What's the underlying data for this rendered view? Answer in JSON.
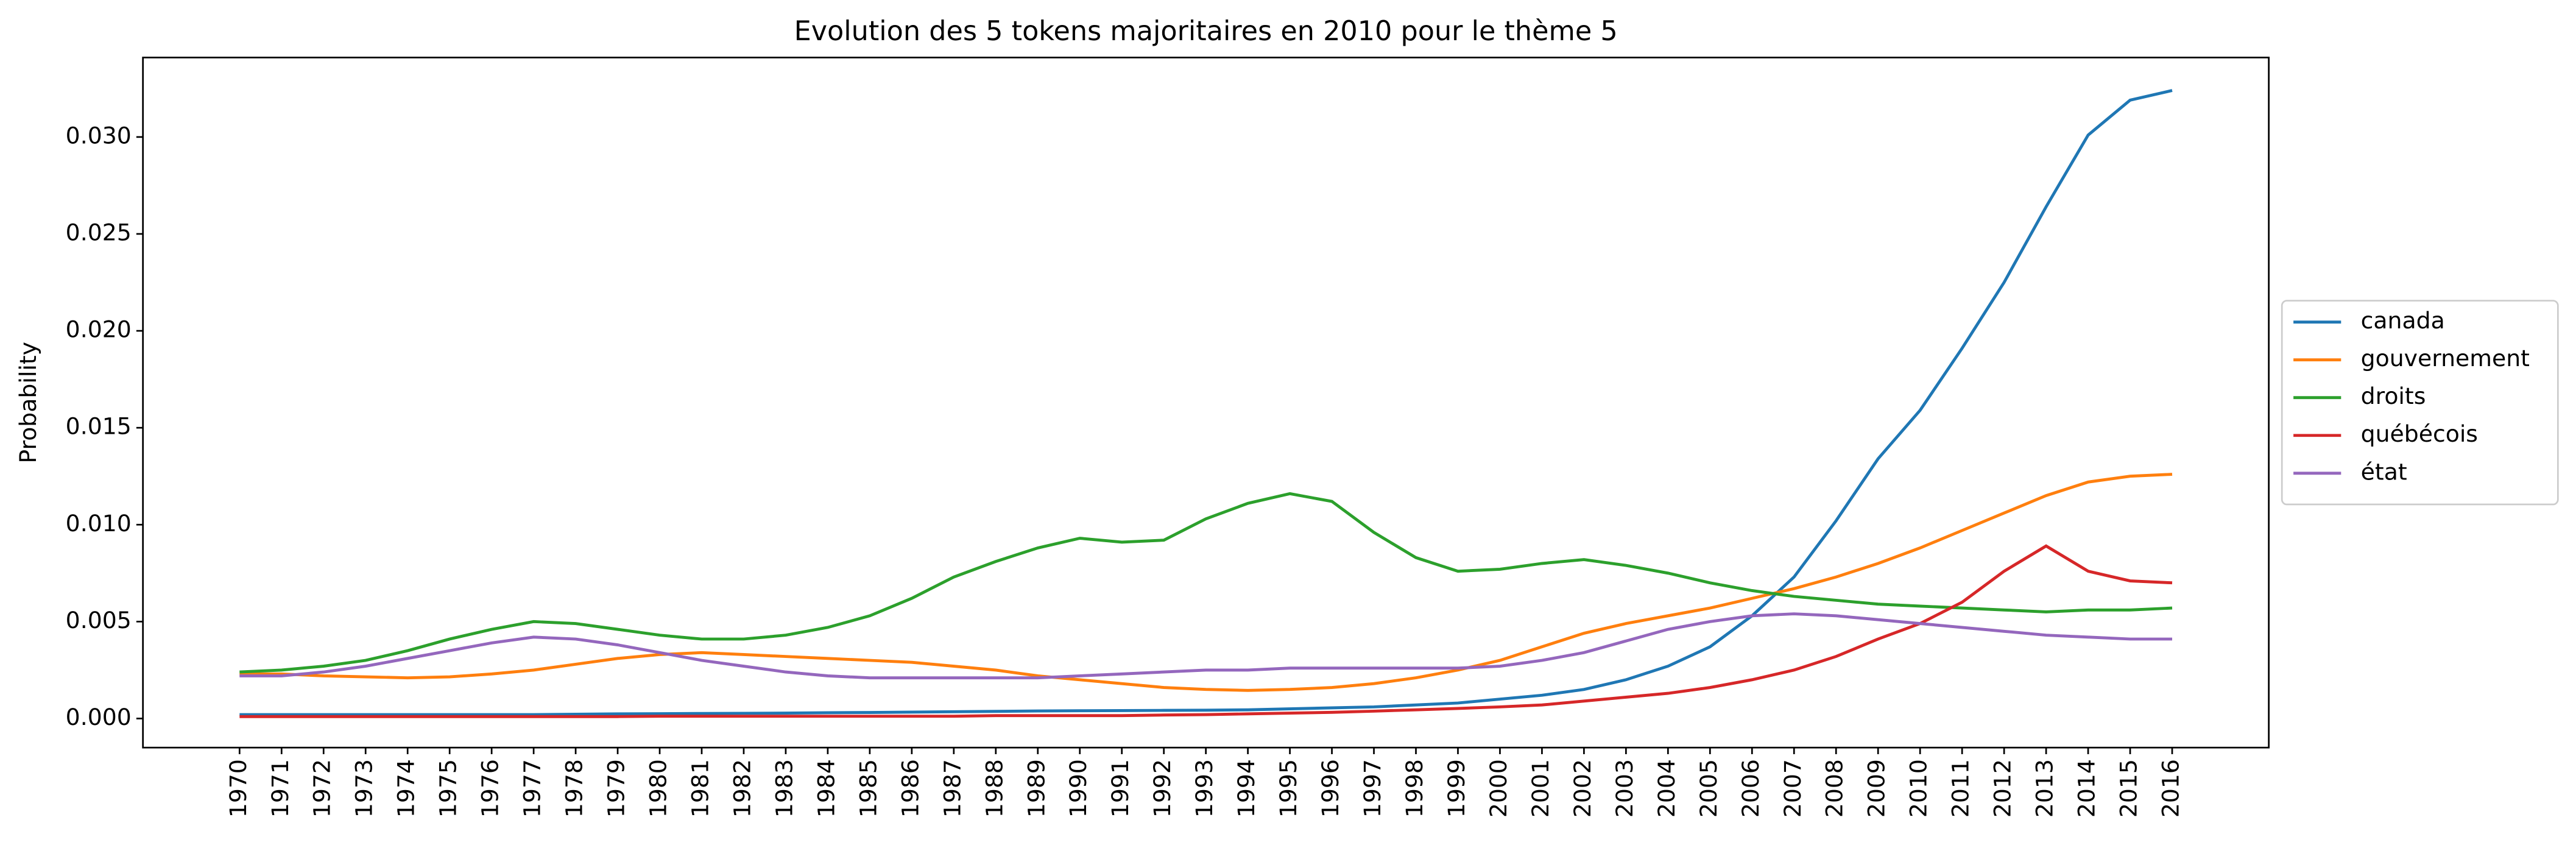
{
  "chart_data": {
    "type": "line",
    "title": "Evolution des 5 tokens majoritaires en 2010 pour le thème 5",
    "y_label": "Probability",
    "x": [
      1970,
      1971,
      1972,
      1973,
      1974,
      1975,
      1976,
      1977,
      1978,
      1979,
      1980,
      1981,
      1982,
      1983,
      1984,
      1985,
      1986,
      1987,
      1988,
      1989,
      1990,
      1991,
      1992,
      1993,
      1994,
      1995,
      1996,
      1997,
      1998,
      1999,
      2000,
      2001,
      2002,
      2003,
      2004,
      2005,
      2006,
      2007,
      2008,
      2009,
      2010,
      2011,
      2012,
      2013,
      2014,
      2015,
      2016
    ],
    "xticks": [
      1970,
      1971,
      1972,
      1973,
      1974,
      1975,
      1976,
      1977,
      1978,
      1979,
      1980,
      1981,
      1982,
      1983,
      1984,
      1985,
      1986,
      1987,
      1988,
      1989,
      1990,
      1991,
      1992,
      1993,
      1994,
      1995,
      1996,
      1997,
      1998,
      1999,
      2000,
      2001,
      2002,
      2003,
      2004,
      2005,
      2006,
      2007,
      2008,
      2009,
      2010,
      2011,
      2012,
      2013,
      2014,
      2015,
      2016
    ],
    "xlim": [
      1967.7,
      2018.3
    ],
    "ylim": [
      -0.0015,
      0.0341
    ],
    "yticks": [
      {
        "value": 0,
        "label": "0.000"
      },
      {
        "value": 0.005,
        "label": "0.005"
      },
      {
        "value": 0.01,
        "label": "0.010"
      },
      {
        "value": 0.015,
        "label": "0.015"
      },
      {
        "value": 0.02,
        "label": "0.020"
      },
      {
        "value": 0.025,
        "label": "0.025"
      },
      {
        "value": 0.03,
        "label": "0.030"
      }
    ],
    "legend": "right",
    "series": [
      {
        "name": "canada",
        "color": "#1f77b4",
        "values": [
          0.0002,
          0.0002,
          0.0002,
          0.0002,
          0.0002,
          0.0002,
          0.0002,
          0.0002,
          0.00022,
          0.00024,
          0.00025,
          0.00026,
          0.00027,
          0.00028,
          0.0003,
          0.00031,
          0.00033,
          0.00035,
          0.00037,
          0.00039,
          0.0004,
          0.00041,
          0.00042,
          0.00043,
          0.00045,
          0.0005,
          0.00055,
          0.0006,
          0.0007,
          0.0008,
          0.001,
          0.0012,
          0.0015,
          0.002,
          0.0027,
          0.0037,
          0.0053,
          0.0073,
          0.0102,
          0.0134,
          0.0159,
          0.0191,
          0.0225,
          0.0264,
          0.0301,
          0.0319,
          0.0324
        ]
      },
      {
        "name": "gouvernement",
        "color": "#ff7f0e",
        "values": [
          0.0023,
          0.0023,
          0.0022,
          0.00215,
          0.0021,
          0.00215,
          0.0023,
          0.0025,
          0.0028,
          0.0031,
          0.0033,
          0.0034,
          0.0033,
          0.0032,
          0.0031,
          0.003,
          0.0029,
          0.0027,
          0.0025,
          0.0022,
          0.002,
          0.0018,
          0.0016,
          0.0015,
          0.00145,
          0.0015,
          0.0016,
          0.0018,
          0.0021,
          0.0025,
          0.003,
          0.0037,
          0.0044,
          0.0049,
          0.0053,
          0.0057,
          0.0062,
          0.0067,
          0.0073,
          0.008,
          0.0088,
          0.0097,
          0.0106,
          0.0115,
          0.0122,
          0.0125,
          0.0126
        ]
      },
      {
        "name": "droits",
        "color": "#2ca02c",
        "values": [
          0.0024,
          0.0025,
          0.0027,
          0.003,
          0.0035,
          0.0041,
          0.0046,
          0.005,
          0.0049,
          0.0046,
          0.0043,
          0.0041,
          0.0041,
          0.0043,
          0.0047,
          0.0053,
          0.0062,
          0.0073,
          0.0081,
          0.0088,
          0.0093,
          0.0091,
          0.0092,
          0.0103,
          0.0111,
          0.0116,
          0.0112,
          0.0096,
          0.0083,
          0.0076,
          0.0077,
          0.008,
          0.0082,
          0.0079,
          0.0075,
          0.007,
          0.0066,
          0.0063,
          0.0061,
          0.0059,
          0.0058,
          0.0057,
          0.0056,
          0.0055,
          0.0056,
          0.0056,
          0.0057
        ]
      },
      {
        "name": "québécois",
        "color": "#d62728",
        "values": [
          0.0001,
          0.0001,
          0.0001,
          0.0001,
          0.0001,
          0.0001,
          0.0001,
          0.0001,
          0.0001,
          0.0001,
          0.00012,
          0.00012,
          0.00012,
          0.00012,
          0.00012,
          0.00012,
          0.00012,
          0.00012,
          0.00015,
          0.00015,
          0.00015,
          0.00015,
          0.00018,
          0.0002,
          0.00024,
          0.00028,
          0.00032,
          0.00038,
          0.00045,
          0.00052,
          0.0006,
          0.0007,
          0.0009,
          0.0011,
          0.0013,
          0.0016,
          0.002,
          0.0025,
          0.0032,
          0.0041,
          0.0049,
          0.006,
          0.0076,
          0.0089,
          0.0076,
          0.0071,
          0.007
        ]
      },
      {
        "name": "état",
        "color": "#9467bd",
        "values": [
          0.0022,
          0.0022,
          0.0024,
          0.0027,
          0.0031,
          0.0035,
          0.0039,
          0.0042,
          0.0041,
          0.0038,
          0.0034,
          0.003,
          0.0027,
          0.0024,
          0.0022,
          0.0021,
          0.0021,
          0.0021,
          0.0021,
          0.0021,
          0.0022,
          0.0023,
          0.0024,
          0.0025,
          0.0025,
          0.0026,
          0.0026,
          0.0026,
          0.0026,
          0.0026,
          0.0027,
          0.003,
          0.0034,
          0.004,
          0.0046,
          0.005,
          0.0053,
          0.0054,
          0.0053,
          0.0051,
          0.0049,
          0.0047,
          0.0045,
          0.0043,
          0.0042,
          0.0041,
          0.0041
        ]
      }
    ]
  }
}
